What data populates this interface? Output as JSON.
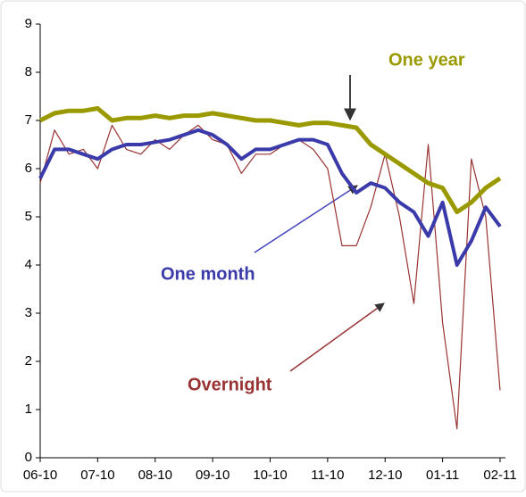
{
  "chart_data": {
    "type": "line",
    "categories": [
      "06-10",
      null,
      null,
      null,
      "07-10",
      null,
      null,
      null,
      "08-10",
      null,
      null,
      null,
      "09-10",
      null,
      null,
      null,
      "10-10",
      null,
      null,
      null,
      "11-10",
      null,
      null,
      null,
      "12-10",
      null,
      null,
      null,
      "01-11",
      null,
      null,
      null,
      "02-11"
    ],
    "series": [
      {
        "name": "One year",
        "color": "#9a9a00",
        "values": [
          7.0,
          7.15,
          7.2,
          7.2,
          7.25,
          7.0,
          7.05,
          7.05,
          7.1,
          7.05,
          7.1,
          7.1,
          7.15,
          7.1,
          7.05,
          7.0,
          7.0,
          6.95,
          6.9,
          6.95,
          6.95,
          6.9,
          6.85,
          6.5,
          6.3,
          6.1,
          5.9,
          5.7,
          5.6,
          5.1,
          5.3,
          5.6,
          5.8
        ]
      },
      {
        "name": "One month",
        "color": "#3a3aaa",
        "values": [
          5.8,
          6.4,
          6.4,
          6.3,
          6.2,
          6.4,
          6.5,
          6.5,
          6.55,
          6.6,
          6.7,
          6.8,
          6.7,
          6.5,
          6.2,
          6.4,
          6.4,
          6.5,
          6.6,
          6.6,
          6.5,
          5.9,
          5.5,
          5.7,
          5.6,
          5.3,
          5.1,
          4.6,
          5.3,
          4.0,
          4.5,
          5.2,
          4.8
        ]
      },
      {
        "name": "Overnight",
        "color": "#993333",
        "values": [
          5.7,
          6.8,
          6.3,
          6.4,
          6.0,
          6.9,
          6.4,
          6.3,
          6.6,
          6.4,
          6.7,
          6.9,
          6.6,
          6.5,
          5.9,
          6.3,
          6.3,
          6.5,
          6.6,
          6.4,
          6.0,
          4.4,
          4.4,
          5.2,
          6.3,
          5.0,
          3.2,
          6.5,
          2.8,
          0.6,
          6.2,
          5.0,
          1.4
        ]
      }
    ],
    "ylim": [
      0,
      9
    ],
    "yticks": [
      0,
      1,
      2,
      3,
      4,
      5,
      6,
      7,
      8,
      9
    ],
    "grid": false
  }
}
